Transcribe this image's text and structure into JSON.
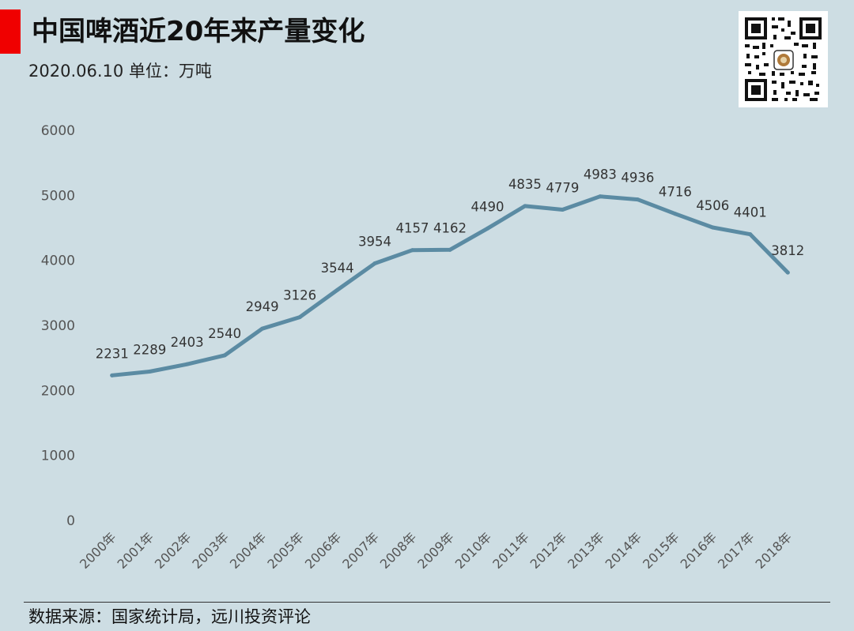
{
  "header": {
    "title": "中国啤酒近20年来产量变化",
    "subtitle": "2020.06.10  单位：万吨"
  },
  "qr_code": {
    "icon": "qr-code-icon"
  },
  "footer": {
    "source": "数据来源：国家统计局，远川投资评论"
  },
  "colors": {
    "background": "#cddde3",
    "line": "#5b8ba3",
    "accent": "#f00000"
  },
  "chart_data": {
    "type": "line",
    "categories": [
      "2000年",
      "2001年",
      "2002年",
      "2003年",
      "2004年",
      "2005年",
      "2006年",
      "2007年",
      "2008年",
      "2009年",
      "2010年",
      "2011年",
      "2012年",
      "2013年",
      "2014年",
      "2015年",
      "2016年",
      "2017年",
      "2018年"
    ],
    "values": [
      2231,
      2289,
      2403,
      2540,
      2949,
      3126,
      3544,
      3954,
      4157,
      4162,
      4490,
      4835,
      4779,
      4983,
      4936,
      4716,
      4506,
      4401,
      3812
    ],
    "yticks": [
      0,
      1000,
      2000,
      3000,
      4000,
      5000,
      6000
    ],
    "ylim": [
      0,
      6000
    ],
    "grid": false,
    "data_labels": true
  }
}
